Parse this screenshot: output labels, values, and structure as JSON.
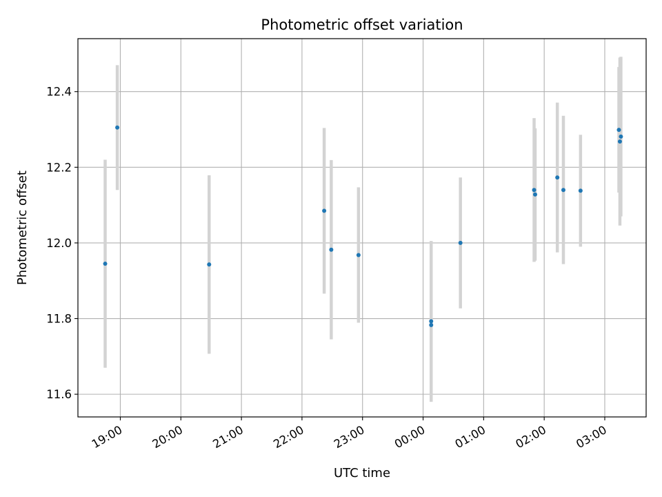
{
  "chart_data": {
    "type": "scatter",
    "title": "Photometric offset variation",
    "xlabel": "UTC time",
    "ylabel": "Photometric offset",
    "x_axis_type": "time",
    "x_ticks": [
      "19:00",
      "20:00",
      "21:00",
      "22:00",
      "23:00",
      "00:00",
      "01:00",
      "02:00",
      "03:00"
    ],
    "xlim": [
      "18:18",
      "03:41"
    ],
    "ylim": [
      11.54,
      12.54
    ],
    "y_ticks": [
      11.6,
      11.8,
      12.0,
      12.2,
      12.4
    ],
    "grid": true,
    "point_color": "#1f77b4",
    "errorbar_color": "#d3d3d3",
    "points": [
      {
        "time": "18:45",
        "y": 11.945,
        "err": 0.275
      },
      {
        "time": "18:57",
        "y": 12.305,
        "err": 0.165
      },
      {
        "time": "20:28",
        "y": 11.943,
        "err": 0.236
      },
      {
        "time": "22:22",
        "y": 12.085,
        "err": 0.219
      },
      {
        "time": "22:29",
        "y": 11.982,
        "err": 0.237
      },
      {
        "time": "22:56",
        "y": 11.968,
        "err": 0.179
      },
      {
        "time": "00:08",
        "y": 11.793,
        "err": 0.212
      },
      {
        "time": "00:08",
        "y": 11.783,
        "err": 0.203
      },
      {
        "time": "00:37",
        "y": 12.0,
        "err": 0.173
      },
      {
        "time": "01:50",
        "y": 12.14,
        "err": 0.19
      },
      {
        "time": "01:51",
        "y": 12.128,
        "err": 0.175
      },
      {
        "time": "02:13",
        "y": 12.173,
        "err": 0.198
      },
      {
        "time": "02:19",
        "y": 12.14,
        "err": 0.196
      },
      {
        "time": "02:36",
        "y": 12.138,
        "err": 0.148
      },
      {
        "time": "03:14",
        "y": 12.299,
        "err": 0.166
      },
      {
        "time": "03:15",
        "y": 12.268,
        "err": 0.222
      },
      {
        "time": "03:16",
        "y": 12.281,
        "err": 0.211
      }
    ]
  }
}
